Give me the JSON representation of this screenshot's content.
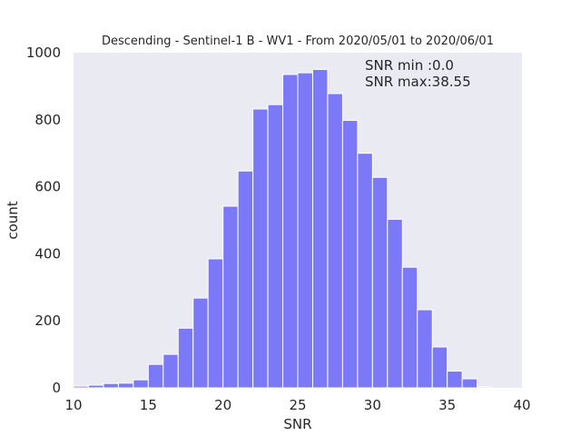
{
  "chart_data": {
    "type": "bar",
    "title": "Descending - Sentinel-1 B - WV1 - From 2020/05/01 to 2020/06/01",
    "xlabel": "SNR",
    "ylabel": "count",
    "xlim": [
      10,
      40
    ],
    "ylim": [
      0,
      1000
    ],
    "xticks": [
      "10",
      "15",
      "20",
      "25",
      "30",
      "35",
      "40"
    ],
    "yticks": [
      "0",
      "200",
      "400",
      "600",
      "800",
      "1000"
    ],
    "bin_edges": [
      10.0,
      11.0,
      12.0,
      13.0,
      14.0,
      15.0,
      16.0,
      17.0,
      18.0,
      19.0,
      20.0,
      21.0,
      22.0,
      23.0,
      24.0,
      25.0,
      26.0,
      27.0,
      28.0,
      29.0,
      30.0,
      31.0,
      32.0,
      33.0,
      34.0,
      35.0,
      36.0,
      37.0,
      38.0
    ],
    "values": [
      5,
      8,
      13,
      14,
      24,
      70,
      100,
      178,
      268,
      385,
      542,
      647,
      832,
      845,
      935,
      940,
      950,
      878,
      798,
      700,
      628,
      503,
      360,
      233,
      122,
      50,
      27,
      3
    ],
    "bar_color": "#7b79f7",
    "background_color": "#eaeaf2",
    "grid": false,
    "annotations": [
      "SNR min :0.0",
      "SNR max:38.55"
    ]
  }
}
